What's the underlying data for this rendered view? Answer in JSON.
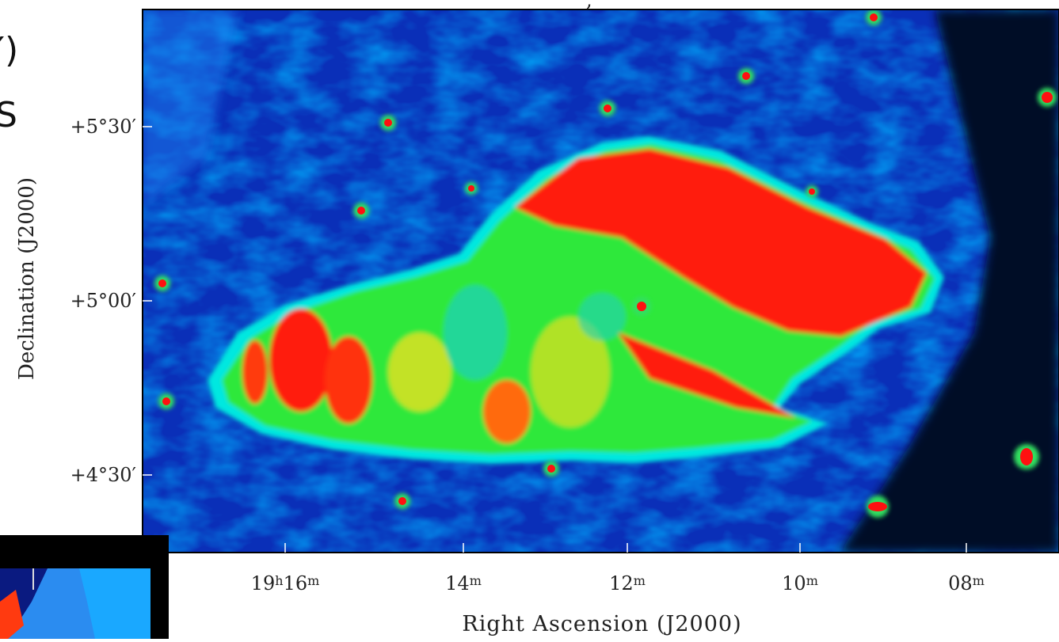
{
  "left_fragments": [
    "′)",
    "S"
  ],
  "plot": {
    "yticks": [
      "+5°30′",
      "+5°00′",
      "+4°30′"
    ],
    "ylabel": "Declination (J2000)",
    "xticks": [
      [
        "19",
        "h",
        "16",
        "m"
      ],
      [
        "14",
        "m"
      ],
      [
        "12",
        "m"
      ],
      [
        "10",
        "m"
      ],
      [
        "08",
        "m"
      ]
    ],
    "xlabel": "Right Ascension (J2000)",
    "top_fragment": ","
  }
}
